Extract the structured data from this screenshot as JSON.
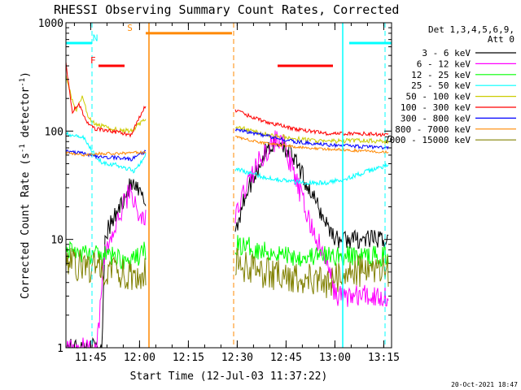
{
  "chart_data": {
    "type": "line",
    "title": "RHESSI Observing Summary Count Rates, Corrected",
    "xlabel": "Start Time (12-Jul-03 11:37:22)",
    "ylabel": "Corrected Count Rate (s",
    "ylabel_sup1": "-1",
    "ylabel_mid": " detector",
    "ylabel_sup2": "-1",
    "ylabel_end": ")",
    "y_scale": "log",
    "ylim": [
      1,
      1000
    ],
    "xlim_min": [
      0,
      100
    ],
    "y_ticks": [
      {
        "value": 1,
        "label": "1"
      },
      {
        "value": 10,
        "label": "10"
      },
      {
        "value": 100,
        "label": "100"
      },
      {
        "value": 1000,
        "label": "1000"
      }
    ],
    "x_ticks": [
      {
        "value": 7.6,
        "label": "11:45"
      },
      {
        "value": 22.6,
        "label": "12:00"
      },
      {
        "value": 37.6,
        "label": "12:15"
      },
      {
        "value": 52.6,
        "label": "12:30"
      },
      {
        "value": 67.6,
        "label": "12:45"
      },
      {
        "value": 82.6,
        "label": "13:00"
      },
      {
        "value": 97.6,
        "label": "13:15"
      }
    ],
    "legend_header": [
      "Det 1,3,4,5,6,9,",
      "Att 0"
    ],
    "series": [
      {
        "name": "3 - 6 keV",
        "color": "#000000"
      },
      {
        "name": "6 - 12 keV",
        "color": "#ff00ff"
      },
      {
        "name": "12 - 25 keV",
        "color": "#00ff00"
      },
      {
        "name": "25 - 50 keV",
        "color": "#00ffff"
      },
      {
        "name": "50 - 100 keV",
        "color": "#cccc00"
      },
      {
        "name": "100 - 300 keV",
        "color": "#ff0000"
      },
      {
        "name": "300 - 800 keV",
        "color": "#0000ff"
      },
      {
        "name": "800 - 7000 keV",
        "color": "#ff8800"
      },
      {
        "name": "7000 - 15000 keV",
        "color": "#808000"
      }
    ],
    "flags": [
      {
        "label": "N",
        "color": "#00ffff",
        "type": "night"
      },
      {
        "label": "F",
        "color": "#ff0000",
        "type": "flare"
      },
      {
        "label": "S",
        "color": "#ff8800",
        "type": "saa"
      }
    ],
    "intervals": {
      "night": [
        [
          0,
          8
        ],
        [
          87,
          100
        ]
      ],
      "flare": [
        [
          10,
          18
        ],
        [
          65,
          82
        ]
      ],
      "saa": [
        [
          24.5,
          51
        ]
      ]
    },
    "vlines": {
      "cyan_dashed": [
        8,
        98
      ],
      "cyan_solid": [
        85
      ],
      "orange_solid": [
        25.5
      ],
      "orange_dashed": [
        51.5
      ]
    },
    "data_gap": [
      25.5,
      51.5
    ]
  },
  "footer": {
    "timestamp": "20-Oct-2021 18:47"
  }
}
